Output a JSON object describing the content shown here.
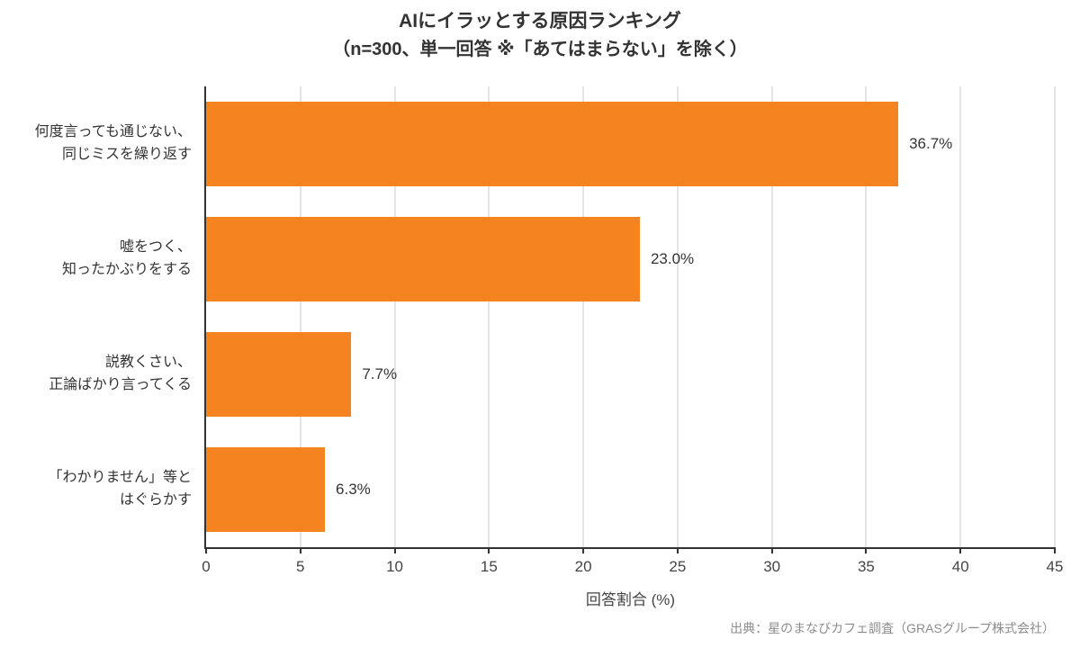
{
  "source": "出典：星のまなびカフェ調査（GRASグループ株式会社）",
  "chart_data": {
    "type": "bar",
    "orientation": "horizontal",
    "title": "AIにイラッとする原因ランキング",
    "subtitle": "（n=300、単一回答 ※「あてはまらない」を除く）",
    "categories": [
      "何度言っても通じない、\n同じミスを繰り返す",
      "嘘をつく、\n知ったかぶりをする",
      "説教くさい、\n正論ばかり言ってくる",
      "「わかりません」等と\nはぐらかす"
    ],
    "values": [
      36.7,
      23.0,
      7.7,
      6.3
    ],
    "value_labels": [
      "36.7%",
      "23.0%",
      "7.7%",
      "6.3%"
    ],
    "xlabel": "回答割合 (%)",
    "xlim": [
      0,
      45
    ],
    "xticks": [
      0,
      5,
      10,
      15,
      20,
      25,
      30,
      35,
      40,
      45
    ],
    "grid": true,
    "legend": false,
    "colors": {
      "bar": "#F5831F",
      "grid": "#E4E4E4",
      "spine": "#333333",
      "text": "#333333",
      "muted": "#8C8C8C"
    }
  }
}
